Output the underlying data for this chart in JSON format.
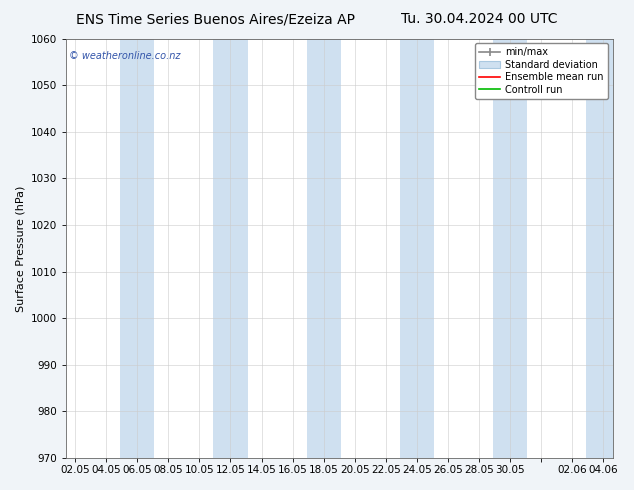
{
  "title_left": "ENS Time Series Buenos Aires/Ezeiza AP",
  "title_right": "Tu. 30.04.2024 00 UTC",
  "ylabel": "Surface Pressure (hPa)",
  "ylim": [
    970,
    1060
  ],
  "yticks": [
    970,
    980,
    990,
    1000,
    1010,
    1020,
    1030,
    1040,
    1050,
    1060
  ],
  "xtick_labels": [
    "02.05",
    "04.05",
    "06.05",
    "08.05",
    "10.05",
    "12.05",
    "14.05",
    "16.05",
    "18.05",
    "20.05",
    "22.05",
    "24.05",
    "26.05",
    "28.05",
    "30.05",
    "",
    "02.06",
    "04.06"
  ],
  "watermark": "© weatheronline.co.nz",
  "background_color": "#f0f4f8",
  "plot_bg_color": "#ffffff",
  "band_color": "#cfe0f0",
  "legend_labels": [
    "min/max",
    "Standard deviation",
    "Ensemble mean run",
    "Controll run"
  ],
  "legend_colors_line": [
    "#888888",
    "#b8d4e8",
    "#ff0000",
    "#00bb00"
  ],
  "title_fontsize": 10,
  "axis_label_fontsize": 8,
  "tick_fontsize": 7.5,
  "figwidth": 6.34,
  "figheight": 4.9
}
